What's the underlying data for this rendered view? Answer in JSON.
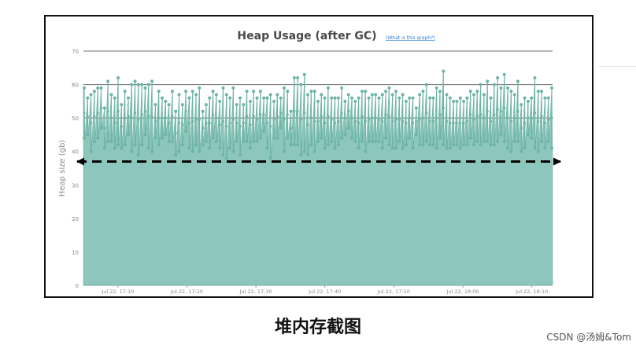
{
  "chart_data": {
    "type": "area",
    "title": "Heap Usage (after GC)",
    "help_link": "(What is this graph?)",
    "xlabel": "",
    "ylabel": "Heap size (gb)",
    "ylim": [
      0,
      70
    ],
    "yticks": [
      0,
      10,
      20,
      30,
      40,
      50,
      60,
      70
    ],
    "xtick_labels": [
      "Jul 22, 17:10",
      "Jul 22, 17:20",
      "Jul 22, 17:30",
      "Jul 22, 17:40",
      "Jul 22, 17:50",
      "Jul 22, 18:00",
      "Jul 22, 18:10"
    ],
    "x_range_minutes": [
      0,
      68
    ],
    "xtick_minutes": [
      5,
      15,
      25,
      35,
      45,
      55,
      65
    ],
    "grid": true,
    "baseline_annotation": 37,
    "series": [
      {
        "highs": [
          59,
          56,
          57,
          58,
          59,
          59,
          53,
          61,
          57,
          56,
          62,
          54,
          58,
          56,
          60,
          61,
          60,
          60,
          59,
          60,
          61,
          54,
          58,
          56,
          55,
          54,
          58,
          52,
          57,
          54,
          58,
          56,
          58,
          57,
          59,
          52,
          54,
          56,
          58,
          57,
          55,
          59,
          57,
          56,
          59,
          54,
          56,
          54,
          58,
          55,
          58,
          56,
          58,
          56,
          56,
          57,
          55,
          57,
          56,
          59,
          58,
          52,
          62,
          62,
          60,
          63,
          57,
          58,
          58,
          55,
          57,
          56,
          59,
          56,
          56,
          56,
          59,
          55,
          57,
          56,
          55,
          56,
          58,
          58,
          56,
          57,
          57,
          56,
          57,
          58,
          59,
          57,
          58,
          56,
          57,
          55,
          56,
          56,
          53,
          57,
          58,
          60,
          56,
          56,
          59,
          58,
          64,
          57,
          56,
          55,
          55,
          56,
          55,
          56,
          58,
          57,
          58,
          60,
          57,
          61,
          56,
          60,
          62,
          59,
          63,
          59,
          58,
          57,
          61,
          54,
          56,
          55,
          56,
          62,
          58,
          58,
          56,
          56,
          59
        ],
        "lows": [
          44,
          45,
          40,
          43,
          44,
          47,
          41,
          43,
          43,
          41,
          42,
          41,
          42,
          45,
          40,
          42,
          39,
          42,
          45,
          41,
          40,
          44,
          42,
          44,
          45,
          43,
          43,
          39,
          40,
          42,
          46,
          41,
          40,
          42,
          40,
          42,
          43,
          41,
          44,
          43,
          41,
          39,
          38,
          41,
          40,
          43,
          39,
          43,
          43,
          41,
          43,
          43,
          44,
          46,
          41,
          38,
          44,
          44,
          47,
          40,
          44,
          42,
          42,
          42,
          39,
          40,
          39,
          42,
          40,
          43,
          44,
          41,
          42,
          43,
          41,
          42,
          44,
          45,
          47,
          44,
          43,
          41,
          43,
          40,
          43,
          43,
          43,
          43,
          41,
          44,
          42,
          41,
          41,
          43,
          41,
          42,
          44,
          41,
          45,
          42,
          42,
          43,
          42,
          42,
          41,
          44,
          42,
          41,
          41,
          42,
          42,
          41,
          42,
          42,
          44,
          42,
          43,
          42,
          43,
          43,
          42,
          42,
          43,
          45,
          43,
          41,
          40,
          43,
          43,
          40,
          41,
          45,
          44,
          41,
          40,
          43,
          41,
          43,
          41
        ]
      }
    ]
  },
  "caption": "堆内存截图",
  "watermark": "CSDN @汤姆&Tom",
  "colors": {
    "area_fill": "#8cc6bd",
    "marker": "#6eb4a6",
    "grid": "#707070",
    "axis_text": "#8a8a8a",
    "title": "#4a4a4a",
    "link": "#2a7bd4"
  }
}
